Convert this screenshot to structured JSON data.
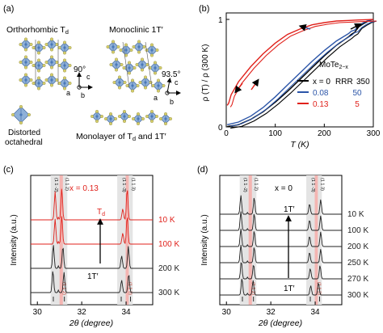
{
  "panel_a": {
    "label": "(a)",
    "title_left": "Orthorhombic T",
    "title_left_sub": "d",
    "title_right": "Monoclinic 1T′",
    "angle_left": "90°",
    "angle_right": "93.5°",
    "axis_c": "c",
    "axis_a": "a",
    "axis_b": "b",
    "octa_label_1": "Distorted",
    "octa_label_2": "octahedral",
    "monolayer_label": "Monolayer of T",
    "monolayer_label_sub": "d",
    "monolayer_label_end": " and 1T′",
    "colors": {
      "mo": "#4a78b8",
      "te": "#d6cf6a",
      "frame": "#555555"
    }
  },
  "chart_data": [
    {
      "panel": "(b)",
      "type": "line",
      "xlabel": "T (K)",
      "ylabel": "ρ (T) / ρ (300 K)",
      "xlim": [
        0,
        300
      ],
      "ylim": [
        0,
        1
      ],
      "x_ticks": [
        "0",
        "100",
        "200",
        "300"
      ],
      "y_ticks": [
        "0",
        "1"
      ],
      "legend_title": "MoTe",
      "legend_title_sub": "2−x",
      "legend_header": "RRR",
      "series": [
        {
          "name": "x = 0",
          "rrr": "350",
          "color": "#000000",
          "x": [
            2,
            25,
            50,
            75,
            100,
            125,
            150,
            175,
            200,
            225,
            250,
            255,
            262,
            270,
            280,
            290,
            300
          ],
          "y": [
            0.003,
            0.02,
            0.07,
            0.14,
            0.23,
            0.33,
            0.44,
            0.55,
            0.66,
            0.76,
            0.84,
            0.86,
            0.88,
            0.93,
            0.96,
            0.985,
            1.0
          ]
        },
        {
          "name": "0.08",
          "rrr": "50",
          "color": "#2b55a8",
          "x": [
            2,
            25,
            50,
            75,
            100,
            125,
            150,
            175,
            200,
            225,
            250,
            255,
            262,
            270,
            280,
            290,
            300
          ],
          "y": [
            0.02,
            0.045,
            0.1,
            0.18,
            0.28,
            0.39,
            0.5,
            0.61,
            0.71,
            0.8,
            0.87,
            0.89,
            0.9,
            0.94,
            0.97,
            0.99,
            1.0
          ]
        },
        {
          "name": "0.13",
          "rrr": "5",
          "color": "#e0211b",
          "x": [
            2,
            5,
            10,
            25,
            50,
            75,
            100,
            125,
            150,
            175,
            200,
            225,
            250,
            270,
            290,
            300
          ],
          "y": [
            0.2,
            0.22,
            0.3,
            0.42,
            0.56,
            0.68,
            0.78,
            0.86,
            0.91,
            0.95,
            0.97,
            0.985,
            0.99,
            0.995,
            0.998,
            1.0
          ]
        }
      ]
    },
    {
      "panel": "(c)",
      "type": "line",
      "title": "x = 0.13",
      "xlabel": "2θ (degree)",
      "ylabel": "Intensity (a.u.)",
      "xlim": [
        29.7,
        35.2
      ],
      "x_ticks": [
        "30",
        "32",
        "34"
      ],
      "top_labels": [
        "(1 1 -2)",
        "(1 1 2)",
        "(1 1 -3)",
        "(1 1 3)"
      ],
      "bottom_labels": [
        "(1 1 2)",
        "(1 1 3)"
      ],
      "phase_top": "T",
      "phase_top_sub": "d",
      "phase_bottom": "1T′",
      "traces": [
        {
          "label": "10 K",
          "color": "#e0211b",
          "peaks": [
            [
              30.8,
              0.9
            ],
            [
              31.1,
              1.0
            ],
            [
              33.85,
              0.35
            ],
            [
              34.05,
              1.0
            ]
          ]
        },
        {
          "label": "100 K",
          "color": "#e0211b",
          "peaks": [
            [
              30.8,
              0.8
            ],
            [
              31.1,
              0.9
            ],
            [
              33.85,
              0.35
            ],
            [
              34.05,
              0.9
            ]
          ]
        },
        {
          "label": "200 K",
          "color": "#222222",
          "peaks": [
            [
              30.72,
              0.75
            ],
            [
              31.15,
              0.7
            ],
            [
              33.8,
              0.4
            ],
            [
              34.1,
              0.7
            ]
          ]
        },
        {
          "label": "300 K",
          "color": "#222222",
          "peaks": [
            [
              30.7,
              0.7
            ],
            [
              31.2,
              0.65
            ],
            [
              33.8,
              0.4
            ],
            [
              34.12,
              0.6
            ]
          ]
        }
      ]
    },
    {
      "panel": "(d)",
      "type": "line",
      "title": "x = 0",
      "xlabel": "2θ (degree)",
      "ylabel": "Intensity (a.u.)",
      "xlim": [
        29.7,
        35.2
      ],
      "x_ticks": [
        "30",
        "32",
        "34"
      ],
      "top_labels": [
        "(1 1 -2)",
        "(1 1 2)",
        "(1 1 -3)",
        "(1 1 3)"
      ],
      "bottom_labels": [
        "(1 1 2)",
        "(1 1 3)"
      ],
      "phase_top": "1T′",
      "phase_bottom": "1T′",
      "traces": [
        {
          "label": "10 K",
          "color": "#222222",
          "peaks": [
            [
              30.65,
              0.9
            ],
            [
              31.25,
              0.8
            ],
            [
              33.75,
              0.5
            ],
            [
              34.25,
              0.7
            ]
          ]
        },
        {
          "label": "100 K",
          "color": "#222222",
          "peaks": [
            [
              30.65,
              0.9
            ],
            [
              31.25,
              0.8
            ],
            [
              33.75,
              0.5
            ],
            [
              34.25,
              0.7
            ]
          ]
        },
        {
          "label": "200 K",
          "color": "#222222",
          "peaks": [
            [
              30.65,
              0.85
            ],
            [
              31.25,
              0.75
            ],
            [
              33.75,
              0.5
            ],
            [
              34.25,
              0.7
            ]
          ]
        },
        {
          "label": "250 K",
          "color": "#222222",
          "peaks": [
            [
              30.65,
              0.85
            ],
            [
              31.25,
              0.75
            ],
            [
              33.75,
              0.5
            ],
            [
              34.25,
              0.65
            ]
          ]
        },
        {
          "label": "270 K",
          "color": "#222222",
          "peaks": [
            [
              30.67,
              0.85
            ],
            [
              31.22,
              0.7
            ],
            [
              33.78,
              0.5
            ],
            [
              34.22,
              0.65
            ]
          ]
        },
        {
          "label": "300 K",
          "color": "#222222",
          "peaks": [
            [
              30.7,
              0.8
            ],
            [
              31.2,
              0.7
            ],
            [
              33.8,
              0.45
            ],
            [
              34.15,
              0.6
            ]
          ]
        }
      ]
    }
  ]
}
